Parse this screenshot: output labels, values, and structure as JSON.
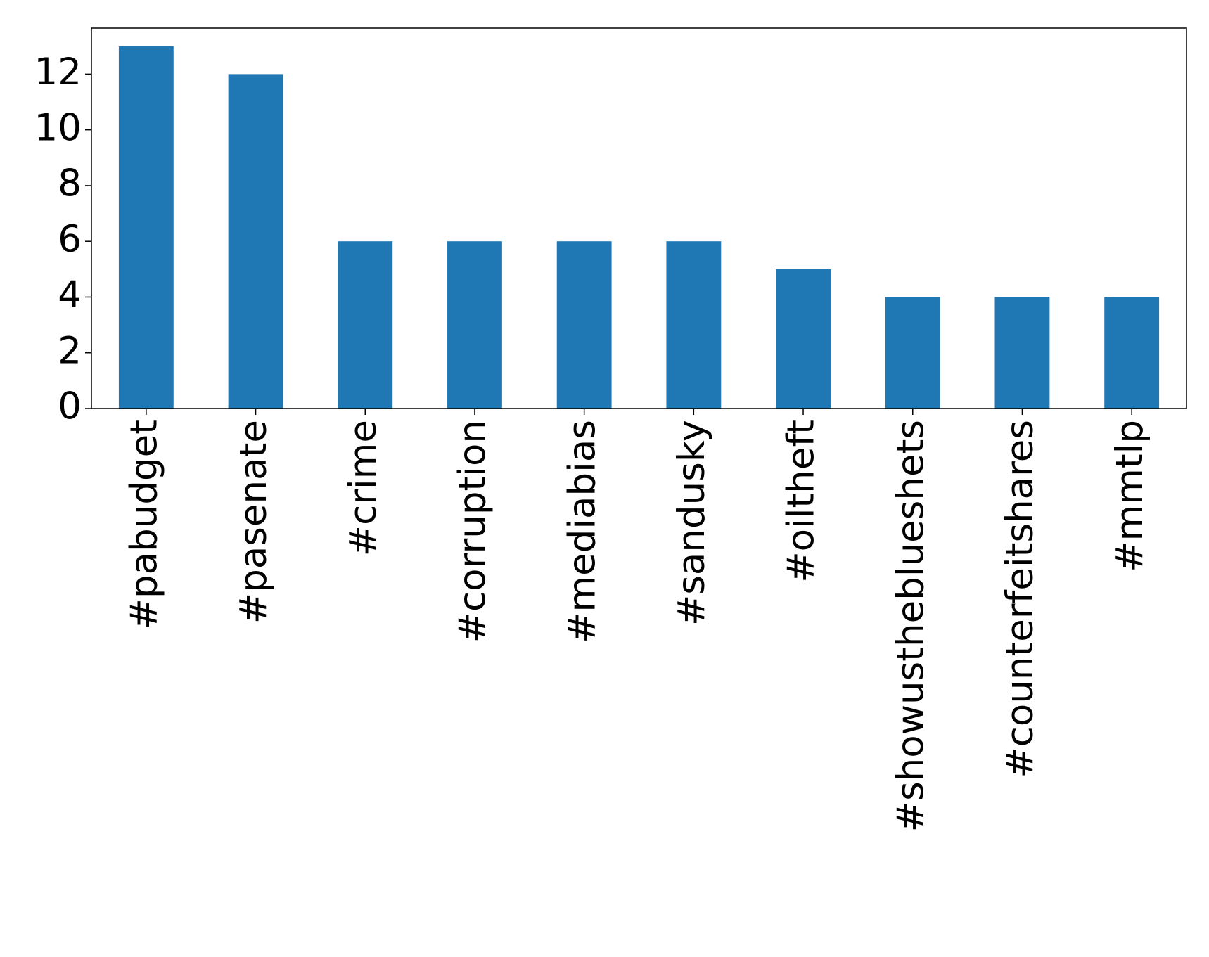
{
  "chart_data": {
    "type": "bar",
    "categories": [
      "#pabudget",
      "#pasenate",
      "#crime",
      "#corruption",
      "#mediabias",
      "#sandusky",
      "#oiltheft",
      "#showustheblueshets",
      "#counterfeitshares",
      "#mmtlp"
    ],
    "values": [
      13,
      12,
      6,
      6,
      6,
      6,
      5,
      4,
      4,
      4
    ],
    "color": "#1f77b4",
    "ylim": [
      0,
      13.65
    ],
    "yticks": [
      0,
      2,
      4,
      6,
      8,
      10,
      12
    ],
    "grid": false
  }
}
